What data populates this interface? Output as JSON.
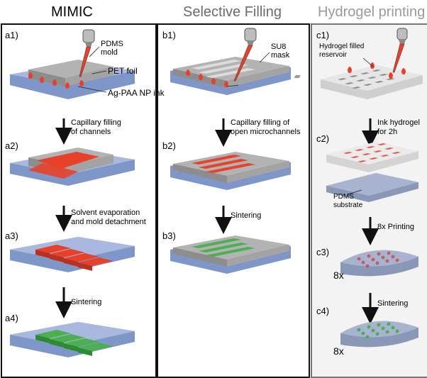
{
  "headers": {
    "mimic": "MIMIC",
    "selective": "Selective Filling",
    "hydrogel": "Hydrogel printing"
  },
  "steps": {
    "a1": "a1)",
    "a2": "a2)",
    "a3": "a3)",
    "a4": "a4)",
    "b1": "b1)",
    "b2": "b2)",
    "b3": "b3)",
    "c1": "c1)",
    "c2": "c2)",
    "c3": "c3)",
    "c4": "c4)"
  },
  "labels": {
    "pdms_mold_1": "PDMS",
    "pdms_mold_2": "mold",
    "pet_foil": "PET foil",
    "ag_ink": "Ag-PAA NP ink",
    "su8_1": "SU8",
    "su8_2": "mask",
    "hydrogel_res_1": "Hydrogel filled",
    "hydrogel_res_2": "reservoir",
    "pdms_sub_1": "PDMS",
    "pdms_sub_2": "substrate"
  },
  "captions": {
    "mimic_1a": "Capillary filling",
    "mimic_1b": "of channels",
    "mimic_2a": "Solvent evaporation",
    "mimic_2b": "and mold detachment",
    "mimic_3": "Sintering",
    "sel_1a": "Capillary filling of",
    "sel_1b": "open microchannels",
    "sel_2": "Sintering",
    "hyd_1a": "Ink hydrogel",
    "hyd_1b": "for 2h",
    "hyd_2": "8x Printing",
    "hyd_3": "Sintering"
  },
  "multipliers": {
    "c3": "8x",
    "c4": "8x"
  },
  "colors": {
    "substrate": "#7f97c8",
    "gray": "#9a9a9a",
    "ink": "#e8412a",
    "sintered": "#4caf50"
  }
}
